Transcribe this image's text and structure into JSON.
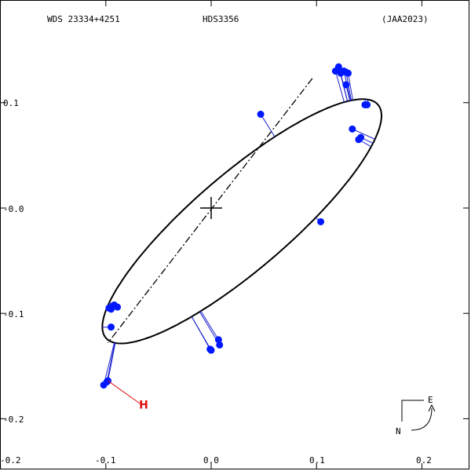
{
  "header": {
    "wds_id": "WDS 23334+4251",
    "discoverer": "HDS3356",
    "reference": "(JAA2023)"
  },
  "axes": {
    "x_ticks": [
      {
        "value": -0.2,
        "label": "-0.2"
      },
      {
        "value": -0.1,
        "label": "-0.1"
      },
      {
        "value": 0.0,
        "label": "0.0"
      },
      {
        "value": 0.1,
        "label": "0.1"
      },
      {
        "value": 0.2,
        "label": "0.2"
      }
    ],
    "y_ticks": [
      {
        "value": 0.1,
        "label": "0.1"
      },
      {
        "value": 0.0,
        "label": "-0.0"
      },
      {
        "value": -0.1,
        "label": "-0.1"
      },
      {
        "value": -0.2,
        "label": "-0.2"
      }
    ],
    "xlim": [
      -0.2,
      0.25
    ],
    "ylim": [
      -0.23,
      0.2
    ]
  },
  "colors": {
    "orbit": "#000000",
    "points": "#0018ff",
    "residual": "#1c22cc",
    "hipparcos": "#e01010",
    "axis": "#000000"
  },
  "chart_data": {
    "type": "scatter",
    "orbit_ellipse": {
      "center": [
        0.0292,
        -0.0126
      ],
      "semi_major": 0.1701,
      "semi_minor": 0.0454,
      "rotation_deg": 40.6
    },
    "line_of_nodes": {
      "from": [
        0.096,
        0.123
      ],
      "to": [
        -0.098,
        -0.128
      ]
    },
    "primary_star": [
      0.0,
      0.0
    ],
    "observations": [
      {
        "x": 0.121,
        "y": 0.134
      },
      {
        "x": 0.118,
        "y": 0.13
      },
      {
        "x": 0.123,
        "y": 0.128
      },
      {
        "x": 0.128,
        "y": 0.129
      },
      {
        "x": 0.126,
        "y": 0.13
      },
      {
        "x": 0.13,
        "y": 0.128
      },
      {
        "x": 0.128,
        "y": 0.117
      },
      {
        "x": 0.146,
        "y": 0.098
      },
      {
        "x": 0.148,
        "y": 0.098
      },
      {
        "x": 0.134,
        "y": 0.075
      },
      {
        "x": 0.142,
        "y": 0.067
      },
      {
        "x": 0.14,
        "y": 0.065
      },
      {
        "x": 0.047,
        "y": 0.089
      },
      {
        "x": 0.104,
        "y": -0.013
      },
      {
        "x": -0.097,
        "y": -0.095
      },
      {
        "x": -0.095,
        "y": -0.096
      },
      {
        "x": -0.094,
        "y": -0.094
      },
      {
        "x": -0.089,
        "y": -0.094
      },
      {
        "x": -0.092,
        "y": -0.092
      },
      {
        "x": -0.095,
        "y": -0.113
      },
      {
        "x": 0.007,
        "y": -0.125
      },
      {
        "x": 0.008,
        "y": -0.13
      },
      {
        "x": 0.0,
        "y": -0.135
      },
      {
        "x": -0.001,
        "y": -0.134
      },
      {
        "x": -0.099,
        "y": -0.165
      },
      {
        "x": -0.102,
        "y": -0.168
      },
      {
        "x": -0.098,
        "y": -0.164
      }
    ],
    "hipparcos": {
      "label": "H",
      "observed": [
        -0.098,
        -0.164
      ],
      "predicted": [
        -0.067,
        -0.186
      ]
    }
  },
  "compass": {
    "east": "E",
    "north": "N"
  }
}
